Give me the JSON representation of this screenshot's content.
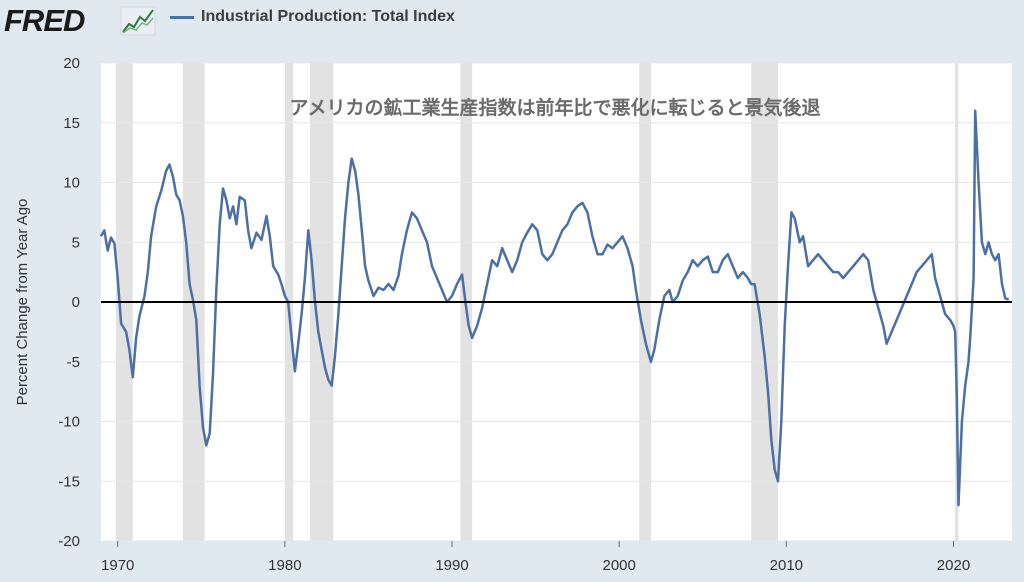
{
  "header": {
    "logo_text": "FRED",
    "logo_icon": "line-chart-icon"
  },
  "colors": {
    "series": "#4c6fa6",
    "recession": "#e2e2e2",
    "zero_line": "#000000",
    "background": "#e1e9f0",
    "plot_background": "#ffffff"
  },
  "chart_data": {
    "type": "line",
    "title": "アメリカの鉱工業生産指数は前年比で悪化に転じると景気後退",
    "xlabel": "",
    "ylabel": "Percent Change from Year Ago",
    "xlim": [
      1969,
      2023.5
    ],
    "ylim": [
      -20,
      20
    ],
    "x_ticks": [
      1970,
      1980,
      1990,
      2000,
      2010,
      2020
    ],
    "x_tick_labels": [
      "1970",
      "1980",
      "1990",
      "2000",
      "2010",
      "2020"
    ],
    "y_ticks": [
      20,
      15,
      10,
      5,
      0,
      -5,
      -10,
      -15,
      -20
    ],
    "y_tick_labels": [
      "20",
      "15",
      "10",
      "5",
      "0",
      "-5",
      "-10",
      "-15",
      "-20"
    ],
    "grid": "horizontal",
    "legend_position": "top-left",
    "zero_line": true,
    "recessions": [
      [
        1969.9,
        1970.9
      ],
      [
        1973.9,
        1975.2
      ],
      [
        1980.0,
        1980.5
      ],
      [
        1981.5,
        1982.9
      ],
      [
        1990.5,
        1991.2
      ],
      [
        2001.2,
        2001.9
      ],
      [
        2007.9,
        2009.5
      ],
      [
        2020.1,
        2020.3
      ]
    ],
    "series": [
      {
        "name": "Industrial Production: Total Index",
        "points": [
          [
            1969.0,
            5.5
          ],
          [
            1969.2,
            6.0
          ],
          [
            1969.4,
            4.3
          ],
          [
            1969.6,
            5.4
          ],
          [
            1969.8,
            4.9
          ],
          [
            1970.0,
            2.0
          ],
          [
            1970.2,
            -1.8
          ],
          [
            1970.5,
            -2.5
          ],
          [
            1970.7,
            -4.0
          ],
          [
            1970.9,
            -6.3
          ],
          [
            1971.1,
            -3.0
          ],
          [
            1971.3,
            -1.2
          ],
          [
            1971.6,
            0.5
          ],
          [
            1971.8,
            2.5
          ],
          [
            1972.0,
            5.5
          ],
          [
            1972.3,
            8.0
          ],
          [
            1972.6,
            9.3
          ],
          [
            1972.9,
            11.0
          ],
          [
            1973.1,
            11.5
          ],
          [
            1973.3,
            10.5
          ],
          [
            1973.5,
            9.0
          ],
          [
            1973.7,
            8.5
          ],
          [
            1973.9,
            7.2
          ],
          [
            1974.1,
            5.0
          ],
          [
            1974.3,
            1.5
          ],
          [
            1974.5,
            0.2
          ],
          [
            1974.7,
            -1.5
          ],
          [
            1974.9,
            -7.0
          ],
          [
            1975.1,
            -10.5
          ],
          [
            1975.3,
            -12.0
          ],
          [
            1975.5,
            -11.0
          ],
          [
            1975.7,
            -6.0
          ],
          [
            1975.9,
            1.0
          ],
          [
            1976.1,
            6.5
          ],
          [
            1976.3,
            9.5
          ],
          [
            1976.5,
            8.5
          ],
          [
            1976.7,
            7.0
          ],
          [
            1976.9,
            8.0
          ],
          [
            1977.1,
            6.5
          ],
          [
            1977.3,
            8.8
          ],
          [
            1977.6,
            8.5
          ],
          [
            1977.8,
            6.0
          ],
          [
            1978.0,
            4.5
          ],
          [
            1978.3,
            5.8
          ],
          [
            1978.6,
            5.2
          ],
          [
            1978.9,
            7.2
          ],
          [
            1979.1,
            5.5
          ],
          [
            1979.3,
            3.0
          ],
          [
            1979.6,
            2.3
          ],
          [
            1979.8,
            1.5
          ],
          [
            1980.0,
            0.5
          ],
          [
            1980.2,
            0.0
          ],
          [
            1980.4,
            -3.0
          ],
          [
            1980.6,
            -5.8
          ],
          [
            1980.8,
            -3.5
          ],
          [
            1981.0,
            -1.0
          ],
          [
            1981.2,
            2.0
          ],
          [
            1981.4,
            6.0
          ],
          [
            1981.6,
            3.5
          ],
          [
            1981.8,
            0.0
          ],
          [
            1982.0,
            -2.5
          ],
          [
            1982.2,
            -4.0
          ],
          [
            1982.4,
            -5.5
          ],
          [
            1982.6,
            -6.5
          ],
          [
            1982.8,
            -7.0
          ],
          [
            1983.0,
            -4.5
          ],
          [
            1983.2,
            -1.0
          ],
          [
            1983.4,
            3.0
          ],
          [
            1983.6,
            7.0
          ],
          [
            1983.8,
            10.0
          ],
          [
            1984.0,
            12.0
          ],
          [
            1984.2,
            11.0
          ],
          [
            1984.4,
            9.0
          ],
          [
            1984.6,
            6.0
          ],
          [
            1984.8,
            3.0
          ],
          [
            1985.0,
            1.8
          ],
          [
            1985.3,
            0.5
          ],
          [
            1985.6,
            1.2
          ],
          [
            1985.9,
            1.0
          ],
          [
            1986.2,
            1.5
          ],
          [
            1986.5,
            1.0
          ],
          [
            1986.8,
            2.2
          ],
          [
            1987.0,
            4.0
          ],
          [
            1987.3,
            6.0
          ],
          [
            1987.6,
            7.5
          ],
          [
            1987.9,
            7.0
          ],
          [
            1988.2,
            6.0
          ],
          [
            1988.5,
            5.0
          ],
          [
            1988.8,
            3.0
          ],
          [
            1989.1,
            2.0
          ],
          [
            1989.4,
            1.0
          ],
          [
            1989.7,
            0.0
          ],
          [
            1990.0,
            0.5
          ],
          [
            1990.3,
            1.5
          ],
          [
            1990.6,
            2.3
          ],
          [
            1990.8,
            0.0
          ],
          [
            1991.0,
            -2.0
          ],
          [
            1991.2,
            -3.0
          ],
          [
            1991.5,
            -2.0
          ],
          [
            1991.8,
            -0.5
          ],
          [
            1992.1,
            1.5
          ],
          [
            1992.4,
            3.5
          ],
          [
            1992.7,
            3.0
          ],
          [
            1993.0,
            4.5
          ],
          [
            1993.3,
            3.5
          ],
          [
            1993.6,
            2.5
          ],
          [
            1993.9,
            3.5
          ],
          [
            1994.2,
            5.0
          ],
          [
            1994.5,
            5.8
          ],
          [
            1994.8,
            6.5
          ],
          [
            1995.1,
            6.0
          ],
          [
            1995.4,
            4.0
          ],
          [
            1995.7,
            3.5
          ],
          [
            1996.0,
            4.0
          ],
          [
            1996.3,
            5.0
          ],
          [
            1996.6,
            6.0
          ],
          [
            1996.9,
            6.5
          ],
          [
            1997.2,
            7.5
          ],
          [
            1997.5,
            8.0
          ],
          [
            1997.8,
            8.3
          ],
          [
            1998.1,
            7.5
          ],
          [
            1998.4,
            5.5
          ],
          [
            1998.7,
            4.0
          ],
          [
            1999.0,
            4.0
          ],
          [
            1999.3,
            4.8
          ],
          [
            1999.6,
            4.5
          ],
          [
            1999.9,
            5.0
          ],
          [
            2000.2,
            5.5
          ],
          [
            2000.5,
            4.5
          ],
          [
            2000.8,
            3.0
          ],
          [
            2001.0,
            1.0
          ],
          [
            2001.3,
            -1.5
          ],
          [
            2001.6,
            -3.5
          ],
          [
            2001.9,
            -5.0
          ],
          [
            2002.1,
            -4.0
          ],
          [
            2002.4,
            -1.5
          ],
          [
            2002.7,
            0.5
          ],
          [
            2003.0,
            1.0
          ],
          [
            2003.2,
            0.0
          ],
          [
            2003.5,
            0.5
          ],
          [
            2003.8,
            1.8
          ],
          [
            2004.1,
            2.5
          ],
          [
            2004.4,
            3.5
          ],
          [
            2004.7,
            3.0
          ],
          [
            2005.0,
            3.5
          ],
          [
            2005.3,
            3.8
          ],
          [
            2005.6,
            2.5
          ],
          [
            2005.9,
            2.5
          ],
          [
            2006.2,
            3.5
          ],
          [
            2006.5,
            4.0
          ],
          [
            2006.8,
            3.0
          ],
          [
            2007.1,
            2.0
          ],
          [
            2007.4,
            2.5
          ],
          [
            2007.7,
            2.0
          ],
          [
            2007.9,
            1.5
          ],
          [
            2008.1,
            1.5
          ],
          [
            2008.4,
            -1.0
          ],
          [
            2008.7,
            -4.5
          ],
          [
            2008.9,
            -7.5
          ],
          [
            2009.1,
            -11.5
          ],
          [
            2009.3,
            -14.0
          ],
          [
            2009.5,
            -15.0
          ],
          [
            2009.7,
            -10.0
          ],
          [
            2009.9,
            -2.0
          ],
          [
            2010.1,
            3.0
          ],
          [
            2010.3,
            7.5
          ],
          [
            2010.5,
            7.0
          ],
          [
            2010.8,
            5.0
          ],
          [
            2011.0,
            5.5
          ],
          [
            2011.3,
            3.0
          ],
          [
            2011.6,
            3.5
          ],
          [
            2011.9,
            4.0
          ],
          [
            2012.2,
            3.5
          ],
          [
            2012.5,
            3.0
          ],
          [
            2012.8,
            2.5
          ],
          [
            2013.1,
            2.5
          ],
          [
            2013.4,
            2.0
          ],
          [
            2013.7,
            2.5
          ],
          [
            2014.0,
            3.0
          ],
          [
            2014.3,
            3.5
          ],
          [
            2014.6,
            4.0
          ],
          [
            2014.9,
            3.5
          ],
          [
            2015.2,
            1.0
          ],
          [
            2015.5,
            -0.5
          ],
          [
            2015.8,
            -2.0
          ],
          [
            2016.0,
            -3.5
          ],
          [
            2016.3,
            -2.5
          ],
          [
            2016.6,
            -1.5
          ],
          [
            2016.9,
            -0.5
          ],
          [
            2017.2,
            0.5
          ],
          [
            2017.5,
            1.5
          ],
          [
            2017.8,
            2.5
          ],
          [
            2018.1,
            3.0
          ],
          [
            2018.4,
            3.5
          ],
          [
            2018.7,
            4.0
          ],
          [
            2018.9,
            2.0
          ],
          [
            2019.2,
            0.5
          ],
          [
            2019.5,
            -1.0
          ],
          [
            2019.8,
            -1.5
          ],
          [
            2020.0,
            -2.0
          ],
          [
            2020.1,
            -2.5
          ],
          [
            2020.2,
            -8.0
          ],
          [
            2020.3,
            -17.0
          ],
          [
            2020.5,
            -10.0
          ],
          [
            2020.7,
            -7.0
          ],
          [
            2020.9,
            -5.0
          ],
          [
            2021.0,
            -3.0
          ],
          [
            2021.2,
            2.0
          ],
          [
            2021.3,
            16.0
          ],
          [
            2021.5,
            10.0
          ],
          [
            2021.7,
            5.0
          ],
          [
            2021.9,
            4.0
          ],
          [
            2022.1,
            5.0
          ],
          [
            2022.3,
            4.0
          ],
          [
            2022.5,
            3.5
          ],
          [
            2022.7,
            4.0
          ],
          [
            2022.9,
            1.5
          ],
          [
            2023.1,
            0.3
          ],
          [
            2023.3,
            0.2
          ]
        ]
      }
    ]
  }
}
